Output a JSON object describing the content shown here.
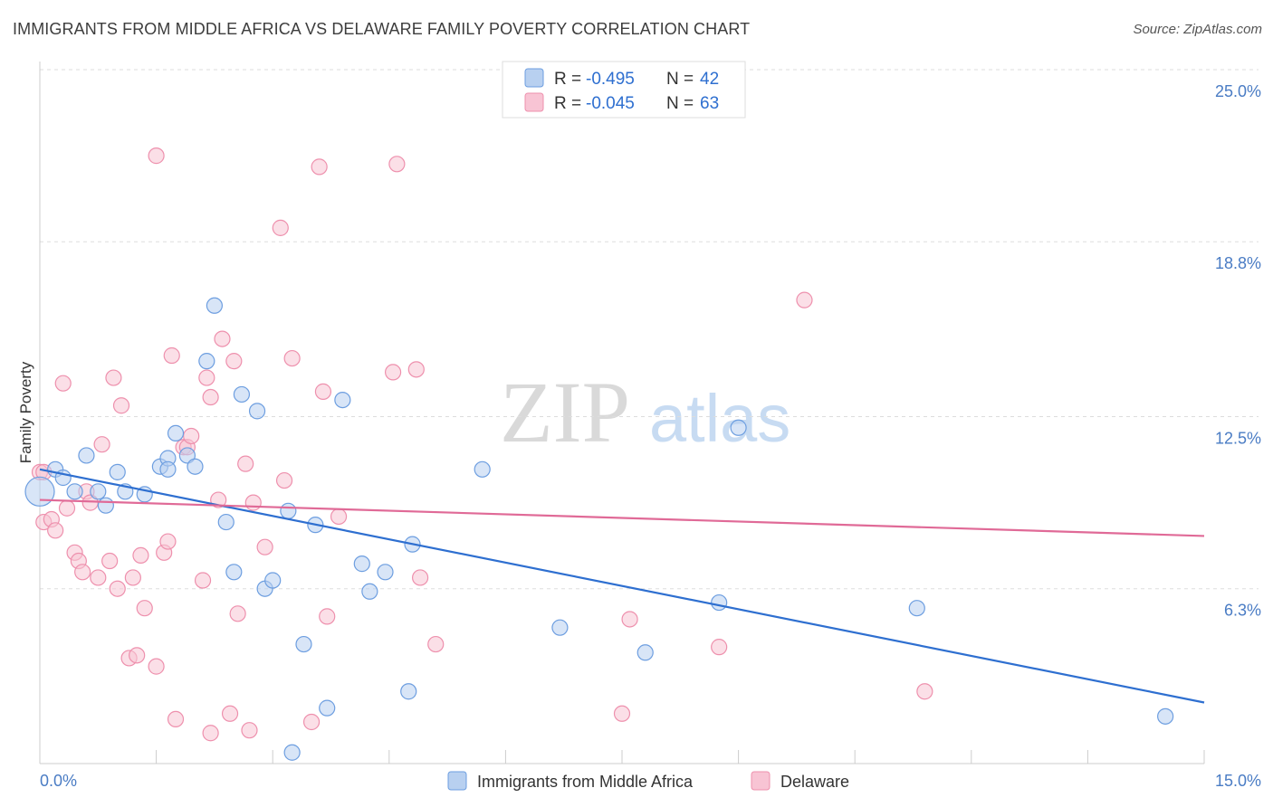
{
  "title": "IMMIGRANTS FROM MIDDLE AFRICA VS DELAWARE FAMILY POVERTY CORRELATION CHART",
  "source": "Source: ZipAtlas.com",
  "watermark": {
    "zip": "ZIP",
    "atlas": "atlas"
  },
  "colors": {
    "blue_fill": "#b8d0f0",
    "blue_stroke": "#6d9ee0",
    "blue_line": "#2e6fd0",
    "pink_fill": "#f8c4d4",
    "pink_stroke": "#ee90ad",
    "pink_line": "#e06a97",
    "grid": "#dddddd",
    "axis_label": "#4a7cc4"
  },
  "legend": {
    "r_label": "R =",
    "n_label": "N =",
    "series": [
      {
        "r": "-0.495",
        "n": "42"
      },
      {
        "r": "-0.045",
        "n": "63"
      }
    ]
  },
  "chart_data": {
    "type": "scatter",
    "title": "IMMIGRANTS FROM MIDDLE AFRICA VS DELAWARE FAMILY POVERTY CORRELATION CHART",
    "xlabel": "",
    "ylabel": "Family Poverty",
    "xlim": [
      0,
      15
    ],
    "ylim": [
      0,
      25.5
    ],
    "x_tick_labels": [
      "0.0%",
      "15.0%"
    ],
    "y_ticks": [
      6.3,
      12.5,
      18.8,
      25.0
    ],
    "y_tick_labels": [
      "6.3%",
      "12.5%",
      "18.8%",
      "25.0%"
    ],
    "grid": true,
    "legend_position": "top-center",
    "series": [
      {
        "name": "Immigrants from Middle Africa",
        "color": "blue",
        "trendline": {
          "x": [
            0,
            15
          ],
          "y": [
            10.6,
            2.2
          ]
        },
        "points": [
          [
            0.0,
            9.8
          ],
          [
            0.2,
            10.6
          ],
          [
            0.3,
            10.3
          ],
          [
            0.45,
            9.8
          ],
          [
            0.6,
            11.1
          ],
          [
            0.75,
            9.8
          ],
          [
            0.85,
            9.3
          ],
          [
            1.0,
            10.5
          ],
          [
            1.1,
            9.8
          ],
          [
            1.35,
            9.7
          ],
          [
            1.55,
            10.7
          ],
          [
            1.65,
            11.0
          ],
          [
            1.65,
            10.6
          ],
          [
            1.75,
            11.9
          ],
          [
            1.9,
            11.1
          ],
          [
            2.0,
            10.7
          ],
          [
            2.15,
            14.5
          ],
          [
            2.25,
            16.5
          ],
          [
            2.4,
            8.7
          ],
          [
            2.5,
            6.9
          ],
          [
            2.6,
            13.3
          ],
          [
            2.8,
            12.7
          ],
          [
            2.9,
            6.3
          ],
          [
            3.0,
            6.6
          ],
          [
            3.2,
            9.1
          ],
          [
            3.25,
            0.4
          ],
          [
            3.4,
            4.3
          ],
          [
            3.55,
            8.6
          ],
          [
            3.7,
            2.0
          ],
          [
            3.9,
            13.1
          ],
          [
            4.15,
            7.2
          ],
          [
            4.25,
            6.2
          ],
          [
            4.45,
            6.9
          ],
          [
            4.75,
            2.6
          ],
          [
            4.8,
            7.9
          ],
          [
            5.7,
            10.6
          ],
          [
            6.7,
            4.9
          ],
          [
            7.8,
            4.0
          ],
          [
            8.75,
            5.8
          ],
          [
            9.0,
            12.1
          ],
          [
            11.3,
            5.6
          ],
          [
            14.5,
            1.7
          ]
        ]
      },
      {
        "name": "Delaware",
        "color": "pink",
        "trendline": {
          "x": [
            0,
            15
          ],
          "y": [
            9.5,
            8.2
          ]
        },
        "points": [
          [
            0.0,
            10.5
          ],
          [
            0.05,
            8.7
          ],
          [
            0.15,
            8.8
          ],
          [
            0.2,
            8.4
          ],
          [
            0.3,
            13.7
          ],
          [
            0.35,
            9.2
          ],
          [
            0.45,
            7.6
          ],
          [
            0.5,
            7.3
          ],
          [
            0.55,
            6.9
          ],
          [
            0.6,
            9.8
          ],
          [
            0.65,
            9.4
          ],
          [
            0.75,
            6.7
          ],
          [
            0.8,
            11.5
          ],
          [
            0.9,
            7.3
          ],
          [
            0.95,
            13.9
          ],
          [
            1.0,
            6.3
          ],
          [
            1.05,
            12.9
          ],
          [
            1.15,
            3.8
          ],
          [
            1.2,
            6.7
          ],
          [
            1.25,
            3.9
          ],
          [
            1.3,
            7.5
          ],
          [
            1.35,
            5.6
          ],
          [
            1.5,
            3.5
          ],
          [
            1.5,
            21.9
          ],
          [
            1.6,
            7.6
          ],
          [
            1.65,
            8.0
          ],
          [
            1.7,
            14.7
          ],
          [
            1.75,
            1.6
          ],
          [
            1.85,
            11.4
          ],
          [
            1.9,
            11.4
          ],
          [
            1.95,
            11.8
          ],
          [
            2.1,
            6.6
          ],
          [
            2.15,
            13.9
          ],
          [
            2.2,
            13.2
          ],
          [
            2.2,
            1.1
          ],
          [
            2.3,
            9.5
          ],
          [
            2.35,
            15.3
          ],
          [
            2.45,
            1.8
          ],
          [
            2.5,
            14.5
          ],
          [
            2.55,
            5.4
          ],
          [
            2.65,
            10.8
          ],
          [
            2.7,
            1.2
          ],
          [
            2.75,
            9.4
          ],
          [
            2.9,
            7.8
          ],
          [
            3.1,
            19.3
          ],
          [
            3.15,
            10.2
          ],
          [
            3.25,
            14.6
          ],
          [
            3.5,
            1.5
          ],
          [
            3.6,
            21.5
          ],
          [
            3.65,
            13.4
          ],
          [
            3.7,
            5.3
          ],
          [
            3.85,
            8.9
          ],
          [
            4.55,
            14.1
          ],
          [
            4.6,
            21.6
          ],
          [
            4.85,
            14.2
          ],
          [
            4.9,
            6.7
          ],
          [
            5.1,
            4.3
          ],
          [
            7.5,
            1.8
          ],
          [
            7.6,
            5.2
          ],
          [
            8.75,
            4.2
          ],
          [
            9.85,
            16.7
          ],
          [
            11.4,
            2.6
          ],
          [
            0.05,
            10.5
          ]
        ]
      }
    ]
  },
  "bottom_legend": [
    "Immigrants from Middle Africa",
    "Delaware"
  ]
}
